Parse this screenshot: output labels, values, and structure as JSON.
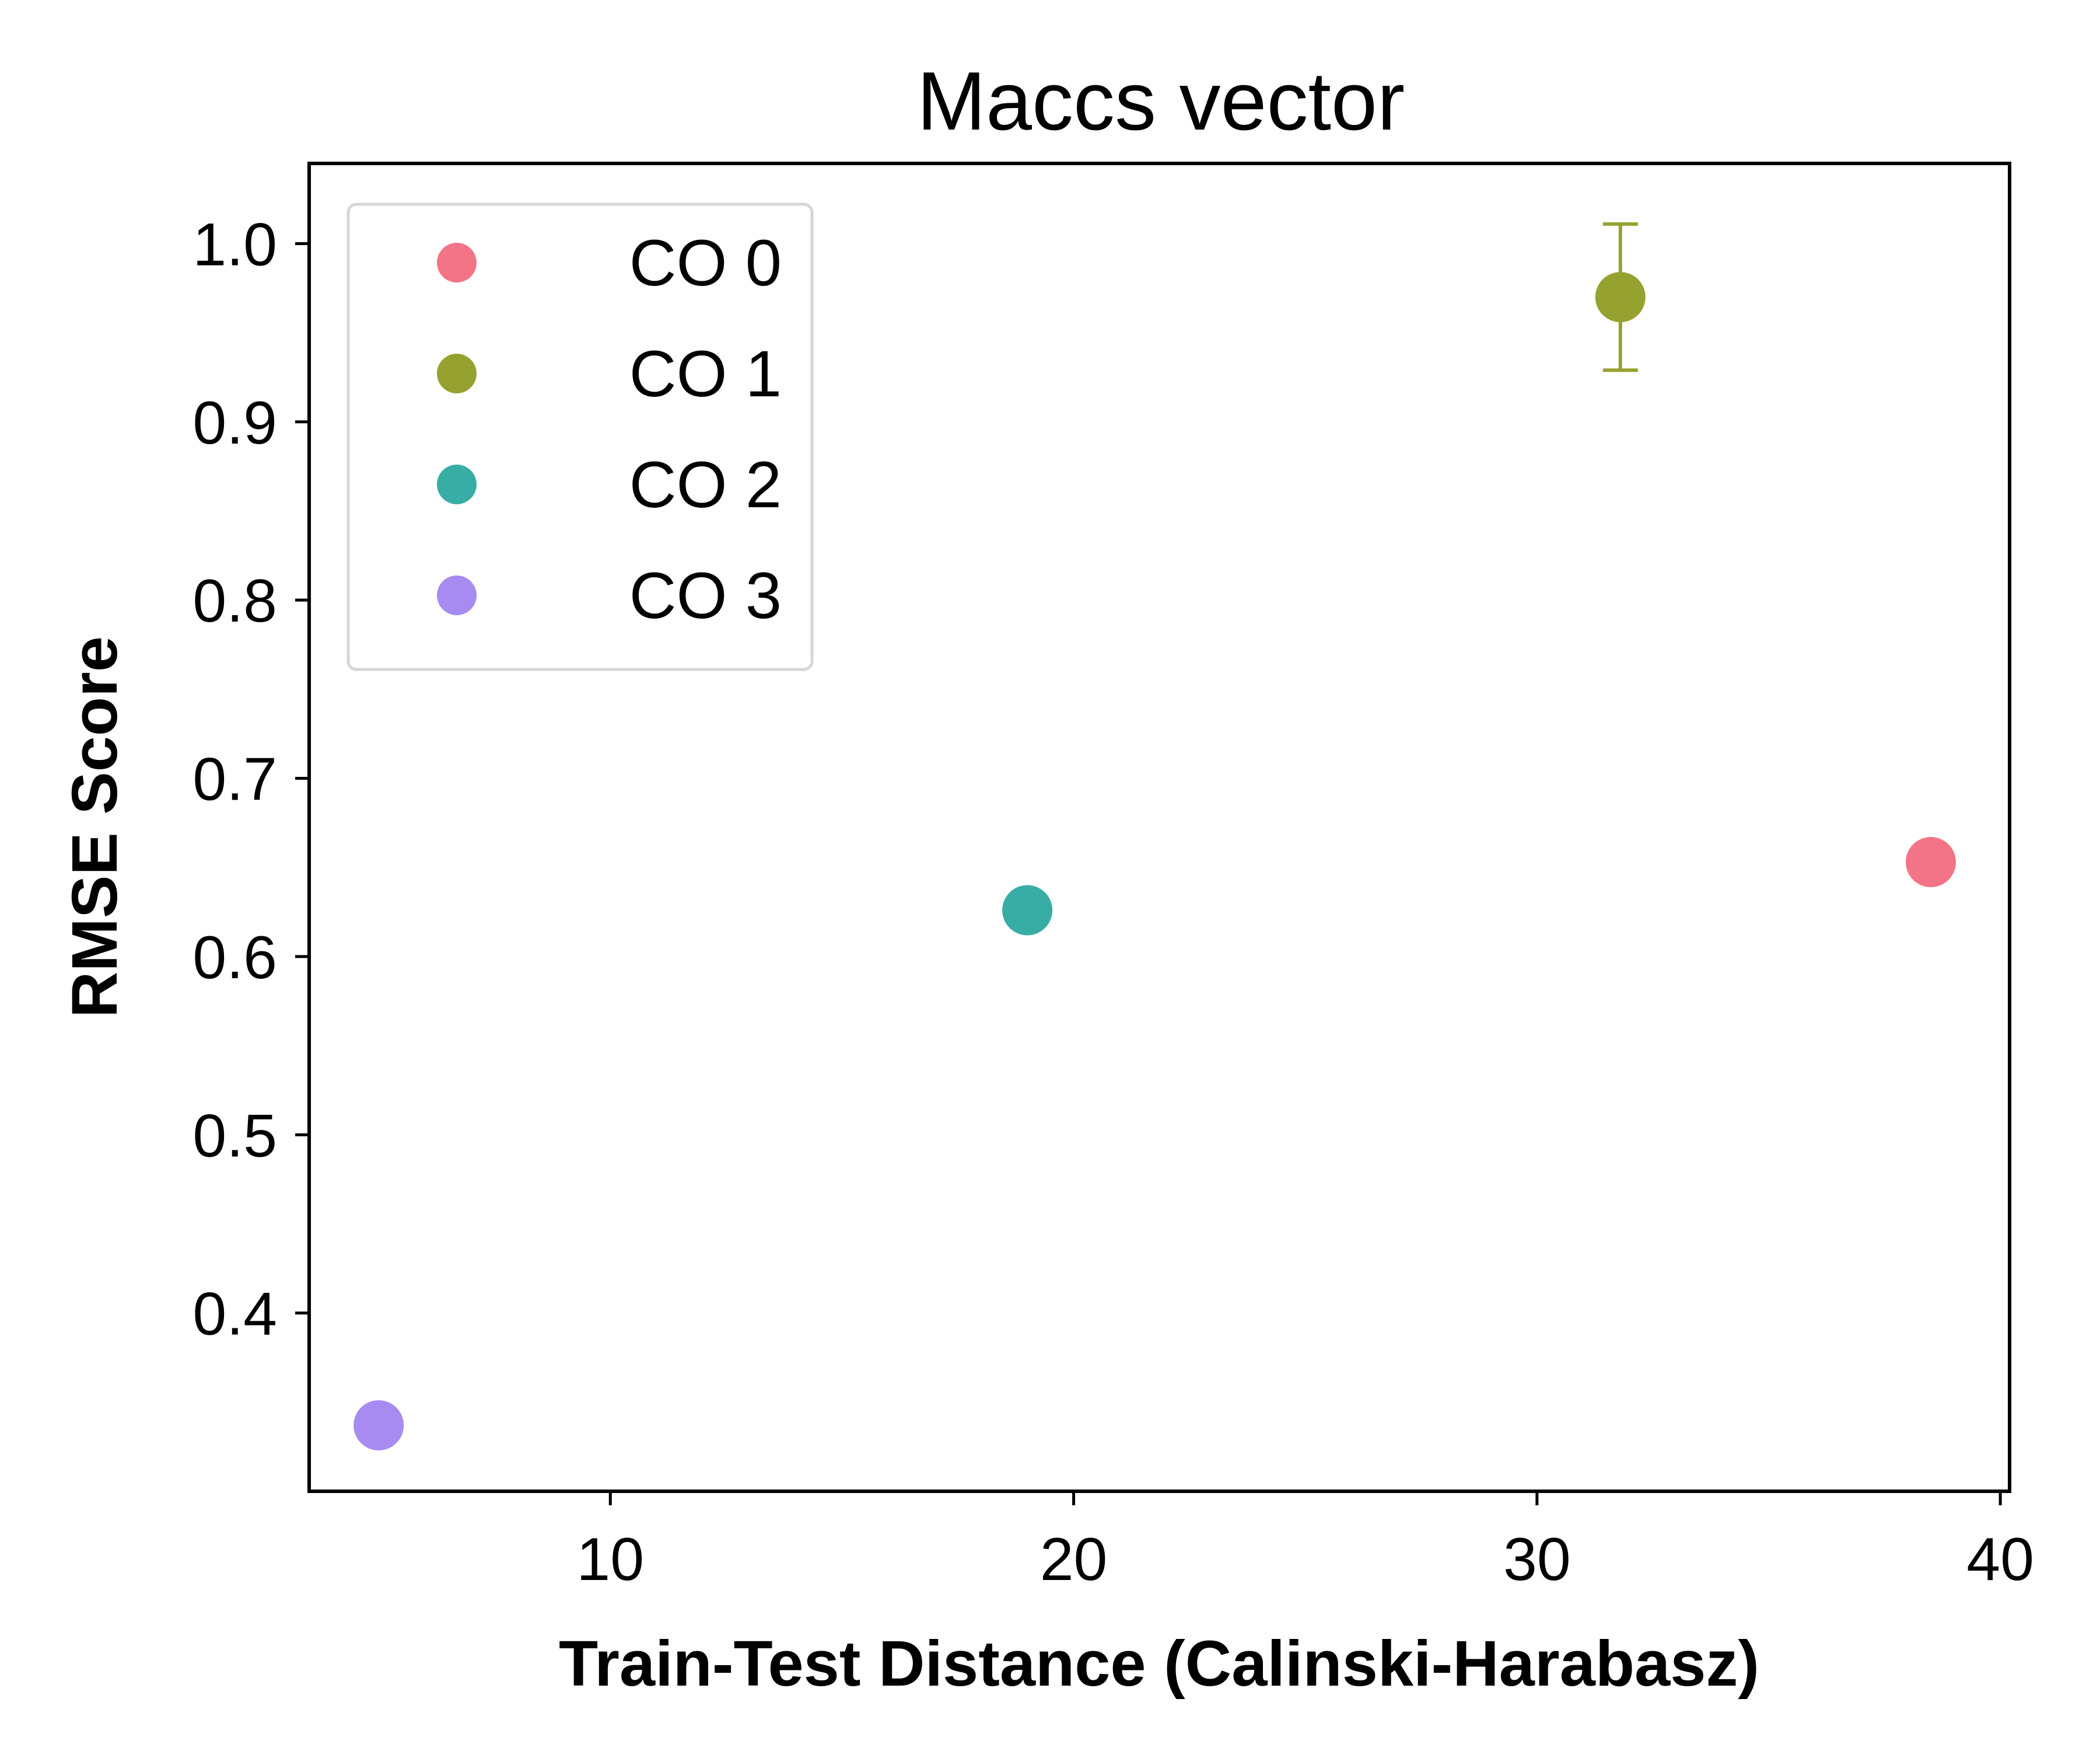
{
  "chart_data": {
    "type": "scatter",
    "title": "Maccs vector",
    "xlabel": "Train-Test Distance (Calinski-Harabasz)",
    "ylabel": "RMSE Score",
    "xlim": [
      3.5,
      40.2
    ],
    "ylim": [
      0.3,
      1.045
    ],
    "xticks": [
      10,
      20,
      30,
      40
    ],
    "yticks": [
      0.4,
      0.5,
      0.6,
      0.7,
      0.8,
      0.9,
      1.0
    ],
    "xtick_labels": [
      "10",
      "20",
      "30",
      "40"
    ],
    "ytick_labels": [
      "0.4",
      "0.5",
      "0.6",
      "0.7",
      "0.8",
      "0.9",
      "1.0"
    ],
    "grid": false,
    "legend_position": "top-left",
    "series": [
      {
        "name": "CO 0",
        "color": "#f37487",
        "x": [
          38.5
        ],
        "y": [
          0.653
        ],
        "yerr": [
          0
        ]
      },
      {
        "name": "CO 1",
        "color": "#96a22f",
        "x": [
          31.8
        ],
        "y": [
          0.97
        ],
        "yerr": [
          0.041
        ]
      },
      {
        "name": "CO 2",
        "color": "#38ada5",
        "x": [
          19.0
        ],
        "y": [
          0.626
        ],
        "yerr": [
          0
        ]
      },
      {
        "name": "CO 3",
        "color": "#a78bf0",
        "x": [
          5.0
        ],
        "y": [
          0.337
        ],
        "yerr": [
          0
        ]
      }
    ]
  }
}
